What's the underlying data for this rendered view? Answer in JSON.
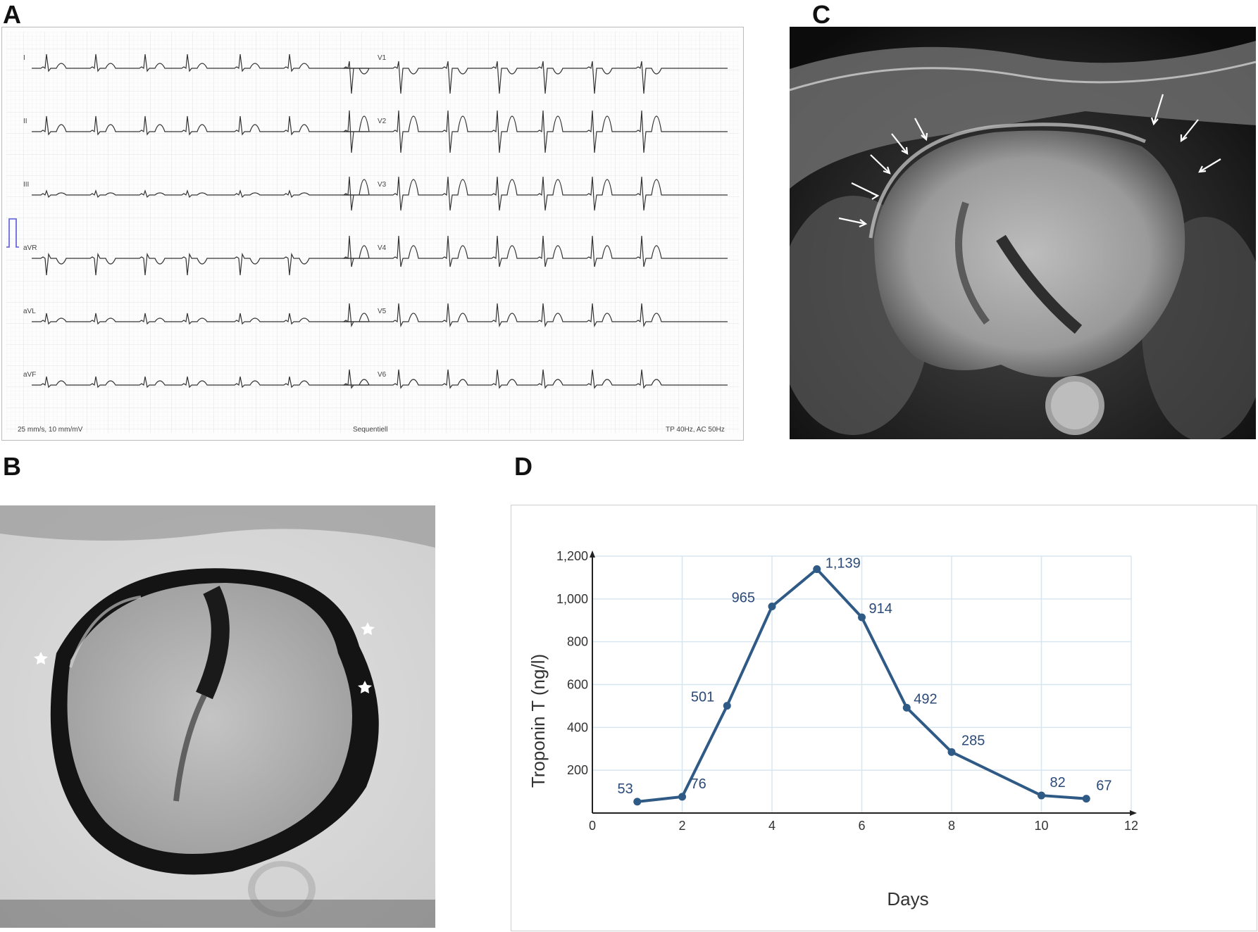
{
  "panels": {
    "a": "A",
    "b": "B",
    "c": "C",
    "d": "D"
  },
  "ecg": {
    "leads_left": [
      "I",
      "II",
      "III",
      "aVR",
      "aVL",
      "aVF"
    ],
    "leads_right": [
      "V1",
      "V2",
      "V3",
      "V4",
      "V5",
      "V6"
    ],
    "footer_left": "25 mm/s, 10 mm/mV",
    "footer_center": "Sequentiell",
    "footer_right": "TP 40Hz, AC 50Hz",
    "grid_color": "#e7e7e7",
    "trace_color": "#333333",
    "calibration_color": "#5a5ad6"
  },
  "chart_data": {
    "type": "line",
    "x": [
      1,
      2,
      3,
      4,
      5,
      6,
      7,
      8,
      10,
      11
    ],
    "y": [
      53,
      76,
      501,
      965,
      1139,
      914,
      492,
      285,
      82,
      67
    ],
    "data_labels": [
      "53",
      "76",
      "501",
      "965",
      "1,139",
      "914",
      "492",
      "285",
      "82",
      "67"
    ],
    "xlabel": "Days",
    "ylabel": "Troponin T (ng/l)",
    "xlim": [
      0,
      12
    ],
    "ylim": [
      0,
      1200
    ],
    "xticks": [
      0,
      2,
      4,
      6,
      8,
      10,
      12
    ],
    "yticks": [
      200,
      400,
      600,
      800,
      1000,
      1200
    ],
    "ytick_labels": [
      "200",
      "400",
      "600",
      "800",
      "1,000",
      "1,200"
    ],
    "grid": true,
    "line_color": "#2f5a85",
    "label_color": "#2b4a78",
    "grid_color": "#d8e6f0"
  }
}
